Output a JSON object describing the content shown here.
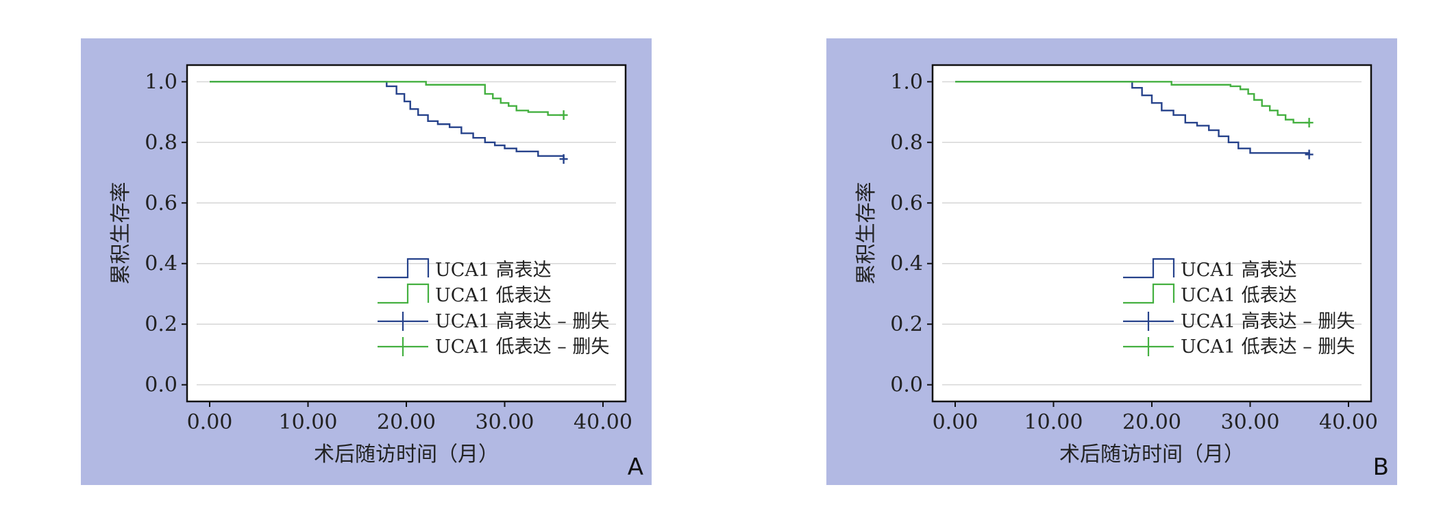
{
  "chart_data": [
    {
      "type": "line",
      "panel_label": "A",
      "xlabel": "术后随访时间（月）",
      "ylabel": "累积生存率",
      "xlim": [
        -2.3,
        42.3
      ],
      "ylim": [
        -0.055,
        1.055
      ],
      "x_ticks": [
        "0.00",
        "10.00",
        "20.00",
        "30.00",
        "40.00"
      ],
      "x_tick_values": [
        0,
        10,
        20,
        30,
        40
      ],
      "y_ticks": [
        "0.0",
        "0.2",
        "0.4",
        "0.6",
        "0.8",
        "1.0"
      ],
      "y_tick_values": [
        0,
        0.2,
        0.4,
        0.6,
        0.8,
        1.0
      ],
      "grid": "horizontal",
      "legend_position": "bottom-right",
      "legend": [
        "UCA1 高表达",
        "UCA1 低表达",
        "UCA1 高表达 – 删失",
        "UCA1 低表达 – 删失"
      ],
      "series": [
        {
          "name": "UCA1 高表达",
          "color": "#26428b",
          "step_x": [
            0,
            18,
            19,
            19.8,
            20.4,
            21.2,
            22.2,
            23.2,
            24.4,
            25.6,
            26.8,
            28.0,
            29.0,
            30.0,
            31.2,
            33.4,
            36
          ],
          "step_y": [
            1.0,
            0.985,
            0.96,
            0.935,
            0.91,
            0.89,
            0.87,
            0.86,
            0.85,
            0.83,
            0.815,
            0.8,
            0.79,
            0.78,
            0.77,
            0.755,
            0.745
          ],
          "censored_x": [
            36
          ]
        },
        {
          "name": "UCA1 低表达",
          "color": "#44b040",
          "step_x": [
            0,
            22,
            28,
            28.8,
            29.6,
            30.4,
            31.2,
            32.4,
            34.4,
            36
          ],
          "step_y": [
            1.0,
            0.99,
            0.96,
            0.945,
            0.93,
            0.92,
            0.905,
            0.9,
            0.89,
            0.89
          ],
          "censored_x": [
            36
          ]
        }
      ]
    },
    {
      "type": "line",
      "panel_label": "B",
      "xlabel": "术后随访时间（月）",
      "ylabel": "累积生存率",
      "xlim": [
        -2.3,
        42.3
      ],
      "ylim": [
        -0.055,
        1.055
      ],
      "x_ticks": [
        "0.00",
        "10.00",
        "20.00",
        "30.00",
        "40.00"
      ],
      "x_tick_values": [
        0,
        10,
        20,
        30,
        40
      ],
      "y_ticks": [
        "0.0",
        "0.2",
        "0.4",
        "0.6",
        "0.8",
        "1.0"
      ],
      "y_tick_values": [
        0,
        0.2,
        0.4,
        0.6,
        0.8,
        1.0
      ],
      "grid": "horizontal",
      "legend_position": "bottom-right",
      "legend": [
        "UCA1 高表达",
        "UCA1 低表达",
        "UCA1 高表达 – 删失",
        "UCA1 低表达 – 删失"
      ],
      "series": [
        {
          "name": "UCA1 高表达",
          "color": "#26428b",
          "step_x": [
            0,
            18,
            19,
            20,
            21,
            22.2,
            23.4,
            24.6,
            25.8,
            26.8,
            27.8,
            28.8,
            30,
            36
          ],
          "step_y": [
            1.0,
            0.98,
            0.955,
            0.93,
            0.905,
            0.89,
            0.865,
            0.855,
            0.84,
            0.82,
            0.8,
            0.78,
            0.765,
            0.76
          ],
          "censored_x": [
            36
          ]
        },
        {
          "name": "UCA1 低表达",
          "color": "#44b040",
          "step_x": [
            0,
            22,
            28,
            29,
            29.8,
            30.4,
            31.2,
            32,
            32.8,
            33.6,
            34.4,
            36
          ],
          "step_y": [
            1.0,
            0.99,
            0.985,
            0.975,
            0.96,
            0.94,
            0.92,
            0.905,
            0.89,
            0.875,
            0.865,
            0.865
          ],
          "censored_x": [
            36
          ]
        }
      ]
    }
  ]
}
